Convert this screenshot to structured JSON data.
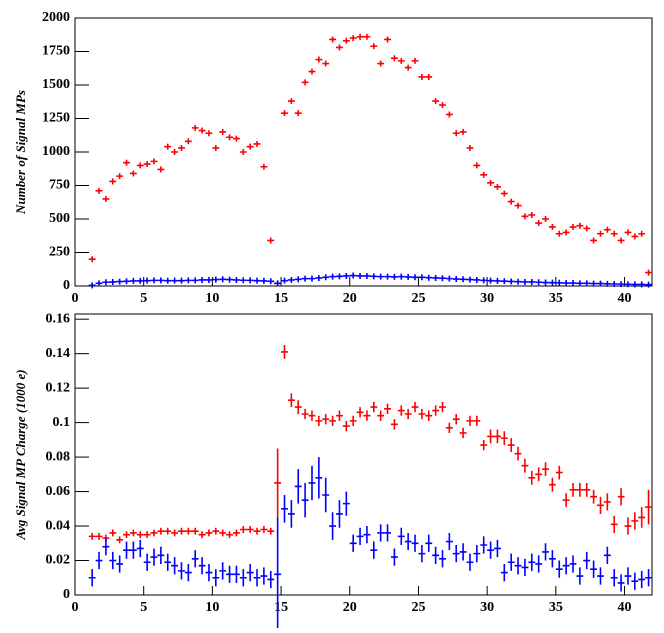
{
  "chart_data": [
    {
      "type": "errorbar",
      "ylabel": "Number of Signal MPs",
      "xlim": [
        0,
        42
      ],
      "xticks": [
        0,
        5,
        10,
        15,
        20,
        25,
        30,
        35,
        40
      ],
      "ylim": [
        0,
        2000
      ],
      "yticks": [
        0,
        250,
        500,
        750,
        1000,
        1250,
        1500,
        1750,
        2000
      ],
      "x": [
        1.25,
        1.75,
        2.25,
        2.75,
        3.25,
        3.75,
        4.25,
        4.75,
        5.25,
        5.75,
        6.25,
        6.75,
        7.25,
        7.75,
        8.25,
        8.75,
        9.25,
        9.75,
        10.25,
        10.75,
        11.25,
        11.75,
        12.25,
        12.75,
        13.25,
        13.75,
        14.25,
        14.75,
        15.25,
        15.75,
        16.25,
        16.75,
        17.25,
        17.75,
        18.25,
        18.75,
        19.25,
        19.75,
        20.25,
        20.75,
        21.25,
        21.75,
        22.25,
        22.75,
        23.25,
        23.75,
        24.25,
        24.75,
        25.25,
        25.75,
        26.25,
        26.75,
        27.25,
        27.75,
        28.25,
        28.75,
        29.25,
        29.75,
        30.25,
        30.75,
        31.25,
        31.75,
        32.25,
        32.75,
        33.25,
        33.75,
        34.25,
        34.75,
        35.25,
        35.75,
        36.25,
        36.75,
        37.25,
        37.75,
        38.25,
        38.75,
        39.25,
        39.75,
        40.25,
        40.75,
        41.25,
        41.75
      ],
      "series": [
        {
          "color": "#ff0000",
          "values": [
            200,
            710,
            650,
            780,
            820,
            920,
            840,
            900,
            910,
            930,
            870,
            1040,
            1000,
            1030,
            1080,
            1180,
            1160,
            1140,
            1030,
            1150,
            1110,
            1100,
            1000,
            1040,
            1060,
            890,
            340,
            20,
            1290,
            1380,
            1290,
            1520,
            1600,
            1690,
            1660,
            1840,
            1780,
            1830,
            1850,
            1860,
            1860,
            1790,
            1660,
            1840,
            1700,
            1680,
            1630,
            1680,
            1560,
            1560,
            1380,
            1350,
            1280,
            1140,
            1150,
            1030,
            900,
            830,
            770,
            740,
            690,
            630,
            600,
            520,
            530,
            470,
            500,
            440,
            390,
            400,
            440,
            450,
            430,
            340,
            390,
            420,
            390,
            340,
            400,
            370,
            390,
            100
          ]
        },
        {
          "color": "#0000ff",
          "values": [
            5,
            20,
            28,
            30,
            33,
            35,
            38,
            38,
            40,
            42,
            42,
            40,
            40,
            40,
            42,
            42,
            45,
            45,
            48,
            50,
            48,
            45,
            43,
            42,
            40,
            38,
            35,
            20,
            40,
            45,
            50,
            55,
            55,
            60,
            65,
            70,
            72,
            75,
            78,
            75,
            75,
            72,
            70,
            70,
            68,
            70,
            68,
            65,
            65,
            62,
            60,
            58,
            55,
            52,
            50,
            48,
            45,
            42,
            40,
            38,
            36,
            34,
            32,
            30,
            30,
            28,
            26,
            25,
            24,
            22,
            22,
            20,
            20,
            18,
            18,
            16,
            15,
            14,
            13,
            12,
            12,
            10
          ]
        }
      ]
    },
    {
      "type": "errorbar",
      "ylabel": "Avg Signal MP Charge (1000 e)",
      "xlim": [
        0,
        42
      ],
      "xticks": [
        0,
        5,
        10,
        15,
        20,
        25,
        30,
        35,
        40
      ],
      "ylim": [
        0,
        0.163
      ],
      "yticks": [
        0,
        0.02,
        0.04,
        0.06,
        0.08,
        0.1,
        0.12,
        0.14,
        0.16
      ],
      "x": [
        1.25,
        1.75,
        2.25,
        2.75,
        3.25,
        3.75,
        4.25,
        4.75,
        5.25,
        5.75,
        6.25,
        6.75,
        7.25,
        7.75,
        8.25,
        8.75,
        9.25,
        9.75,
        10.25,
        10.75,
        11.25,
        11.75,
        12.25,
        12.75,
        13.25,
        13.75,
        14.25,
        14.75,
        15.25,
        15.75,
        16.25,
        16.75,
        17.25,
        17.75,
        18.25,
        18.75,
        19.25,
        19.75,
        20.25,
        20.75,
        21.25,
        21.75,
        22.25,
        22.75,
        23.25,
        23.75,
        24.25,
        24.75,
        25.25,
        25.75,
        26.25,
        26.75,
        27.25,
        27.75,
        28.25,
        28.75,
        29.25,
        29.75,
        30.25,
        30.75,
        31.25,
        31.75,
        32.25,
        32.75,
        33.25,
        33.75,
        34.25,
        34.75,
        35.25,
        35.75,
        36.25,
        36.75,
        37.25,
        37.75,
        38.25,
        38.75,
        39.25,
        39.75,
        40.25,
        40.75,
        41.25,
        41.75
      ],
      "series": [
        {
          "color": "#ff0000",
          "values": [
            0.034,
            0.034,
            0.033,
            0.036,
            0.032,
            0.035,
            0.036,
            0.035,
            0.035,
            0.036,
            0.037,
            0.037,
            0.036,
            0.037,
            0.037,
            0.037,
            0.035,
            0.036,
            0.037,
            0.036,
            0.035,
            0.036,
            0.038,
            0.038,
            0.037,
            0.038,
            0.037,
            0.065,
            0.141,
            0.113,
            0.109,
            0.105,
            0.104,
            0.101,
            0.102,
            0.101,
            0.104,
            0.098,
            0.101,
            0.106,
            0.104,
            0.109,
            0.104,
            0.108,
            0.099,
            0.107,
            0.105,
            0.109,
            0.105,
            0.104,
            0.107,
            0.109,
            0.097,
            0.102,
            0.094,
            0.101,
            0.101,
            0.087,
            0.092,
            0.092,
            0.091,
            0.087,
            0.082,
            0.075,
            0.068,
            0.07,
            0.073,
            0.064,
            0.071,
            0.055,
            0.061,
            0.061,
            0.061,
            0.057,
            0.052,
            0.054,
            0.041,
            0.057,
            0.04,
            0.043,
            0.045,
            0.051
          ],
          "errors": [
            0.002,
            0.002,
            0.002,
            0.002,
            0.002,
            0.002,
            0.002,
            0.002,
            0.002,
            0.002,
            0.002,
            0.002,
            0.002,
            0.002,
            0.002,
            0.002,
            0.002,
            0.002,
            0.002,
            0.002,
            0.002,
            0.002,
            0.002,
            0.002,
            0.002,
            0.002,
            0.002,
            0.02,
            0.004,
            0.004,
            0.004,
            0.003,
            0.003,
            0.003,
            0.003,
            0.003,
            0.003,
            0.003,
            0.003,
            0.003,
            0.003,
            0.003,
            0.003,
            0.003,
            0.003,
            0.003,
            0.003,
            0.003,
            0.003,
            0.003,
            0.003,
            0.003,
            0.003,
            0.003,
            0.003,
            0.003,
            0.003,
            0.003,
            0.004,
            0.004,
            0.004,
            0.004,
            0.004,
            0.004,
            0.004,
            0.004,
            0.004,
            0.004,
            0.004,
            0.004,
            0.004,
            0.004,
            0.004,
            0.004,
            0.005,
            0.005,
            0.005,
            0.005,
            0.005,
            0.005,
            0.006,
            0.01
          ]
        },
        {
          "color": "#0000ff",
          "values": [
            0.01,
            0.02,
            0.028,
            0.02,
            0.018,
            0.026,
            0.026,
            0.027,
            0.019,
            0.022,
            0.023,
            0.019,
            0.017,
            0.014,
            0.013,
            0.021,
            0.017,
            0.013,
            0.01,
            0.014,
            0.012,
            0.012,
            0.01,
            0.013,
            0.01,
            0.011,
            0.009,
            0.012,
            0.05,
            0.047,
            0.063,
            0.055,
            0.065,
            0.068,
            0.058,
            0.04,
            0.047,
            0.053,
            0.03,
            0.034,
            0.035,
            0.026,
            0.036,
            0.036,
            0.022,
            0.034,
            0.031,
            0.03,
            0.024,
            0.03,
            0.023,
            0.021,
            0.031,
            0.024,
            0.025,
            0.019,
            0.024,
            0.029,
            0.026,
            0.027,
            0.013,
            0.019,
            0.017,
            0.016,
            0.019,
            0.018,
            0.025,
            0.021,
            0.015,
            0.017,
            0.018,
            0.011,
            0.02,
            0.015,
            0.011,
            0.023,
            0.01,
            0.007,
            0.011,
            0.008,
            0.009,
            0.01
          ],
          "errors": [
            0.005,
            0.005,
            0.005,
            0.005,
            0.005,
            0.005,
            0.005,
            0.005,
            0.005,
            0.005,
            0.005,
            0.005,
            0.005,
            0.005,
            0.005,
            0.005,
            0.005,
            0.005,
            0.005,
            0.005,
            0.005,
            0.005,
            0.005,
            0.005,
            0.005,
            0.005,
            0.005,
            0.033,
            0.008,
            0.008,
            0.01,
            0.01,
            0.01,
            0.012,
            0.01,
            0.008,
            0.008,
            0.007,
            0.005,
            0.005,
            0.005,
            0.005,
            0.005,
            0.005,
            0.005,
            0.005,
            0.005,
            0.005,
            0.005,
            0.005,
            0.005,
            0.005,
            0.005,
            0.005,
            0.005,
            0.005,
            0.005,
            0.005,
            0.005,
            0.005,
            0.005,
            0.005,
            0.005,
            0.005,
            0.005,
            0.005,
            0.005,
            0.005,
            0.005,
            0.005,
            0.005,
            0.005,
            0.005,
            0.005,
            0.005,
            0.005,
            0.005,
            0.005,
            0.005,
            0.005,
            0.005,
            0.005
          ]
        }
      ]
    }
  ]
}
